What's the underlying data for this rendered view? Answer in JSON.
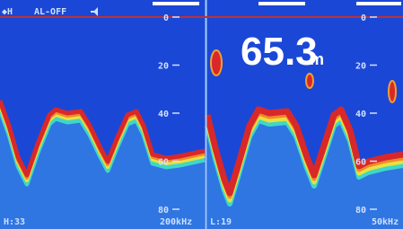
{
  "status": {
    "mode": "◆H",
    "alarm": "AL-OFF"
  },
  "depth": {
    "value": "65.3",
    "unit": "m"
  },
  "left_panel": {
    "scale": [
      "0",
      "20",
      "40",
      "60",
      "80"
    ],
    "gain": "H:33",
    "frequency": "200kHz"
  },
  "right_panel": {
    "scale": [
      "0",
      "20",
      "40",
      "60",
      "80"
    ],
    "gain": "L:19",
    "frequency": "50kHz"
  }
}
